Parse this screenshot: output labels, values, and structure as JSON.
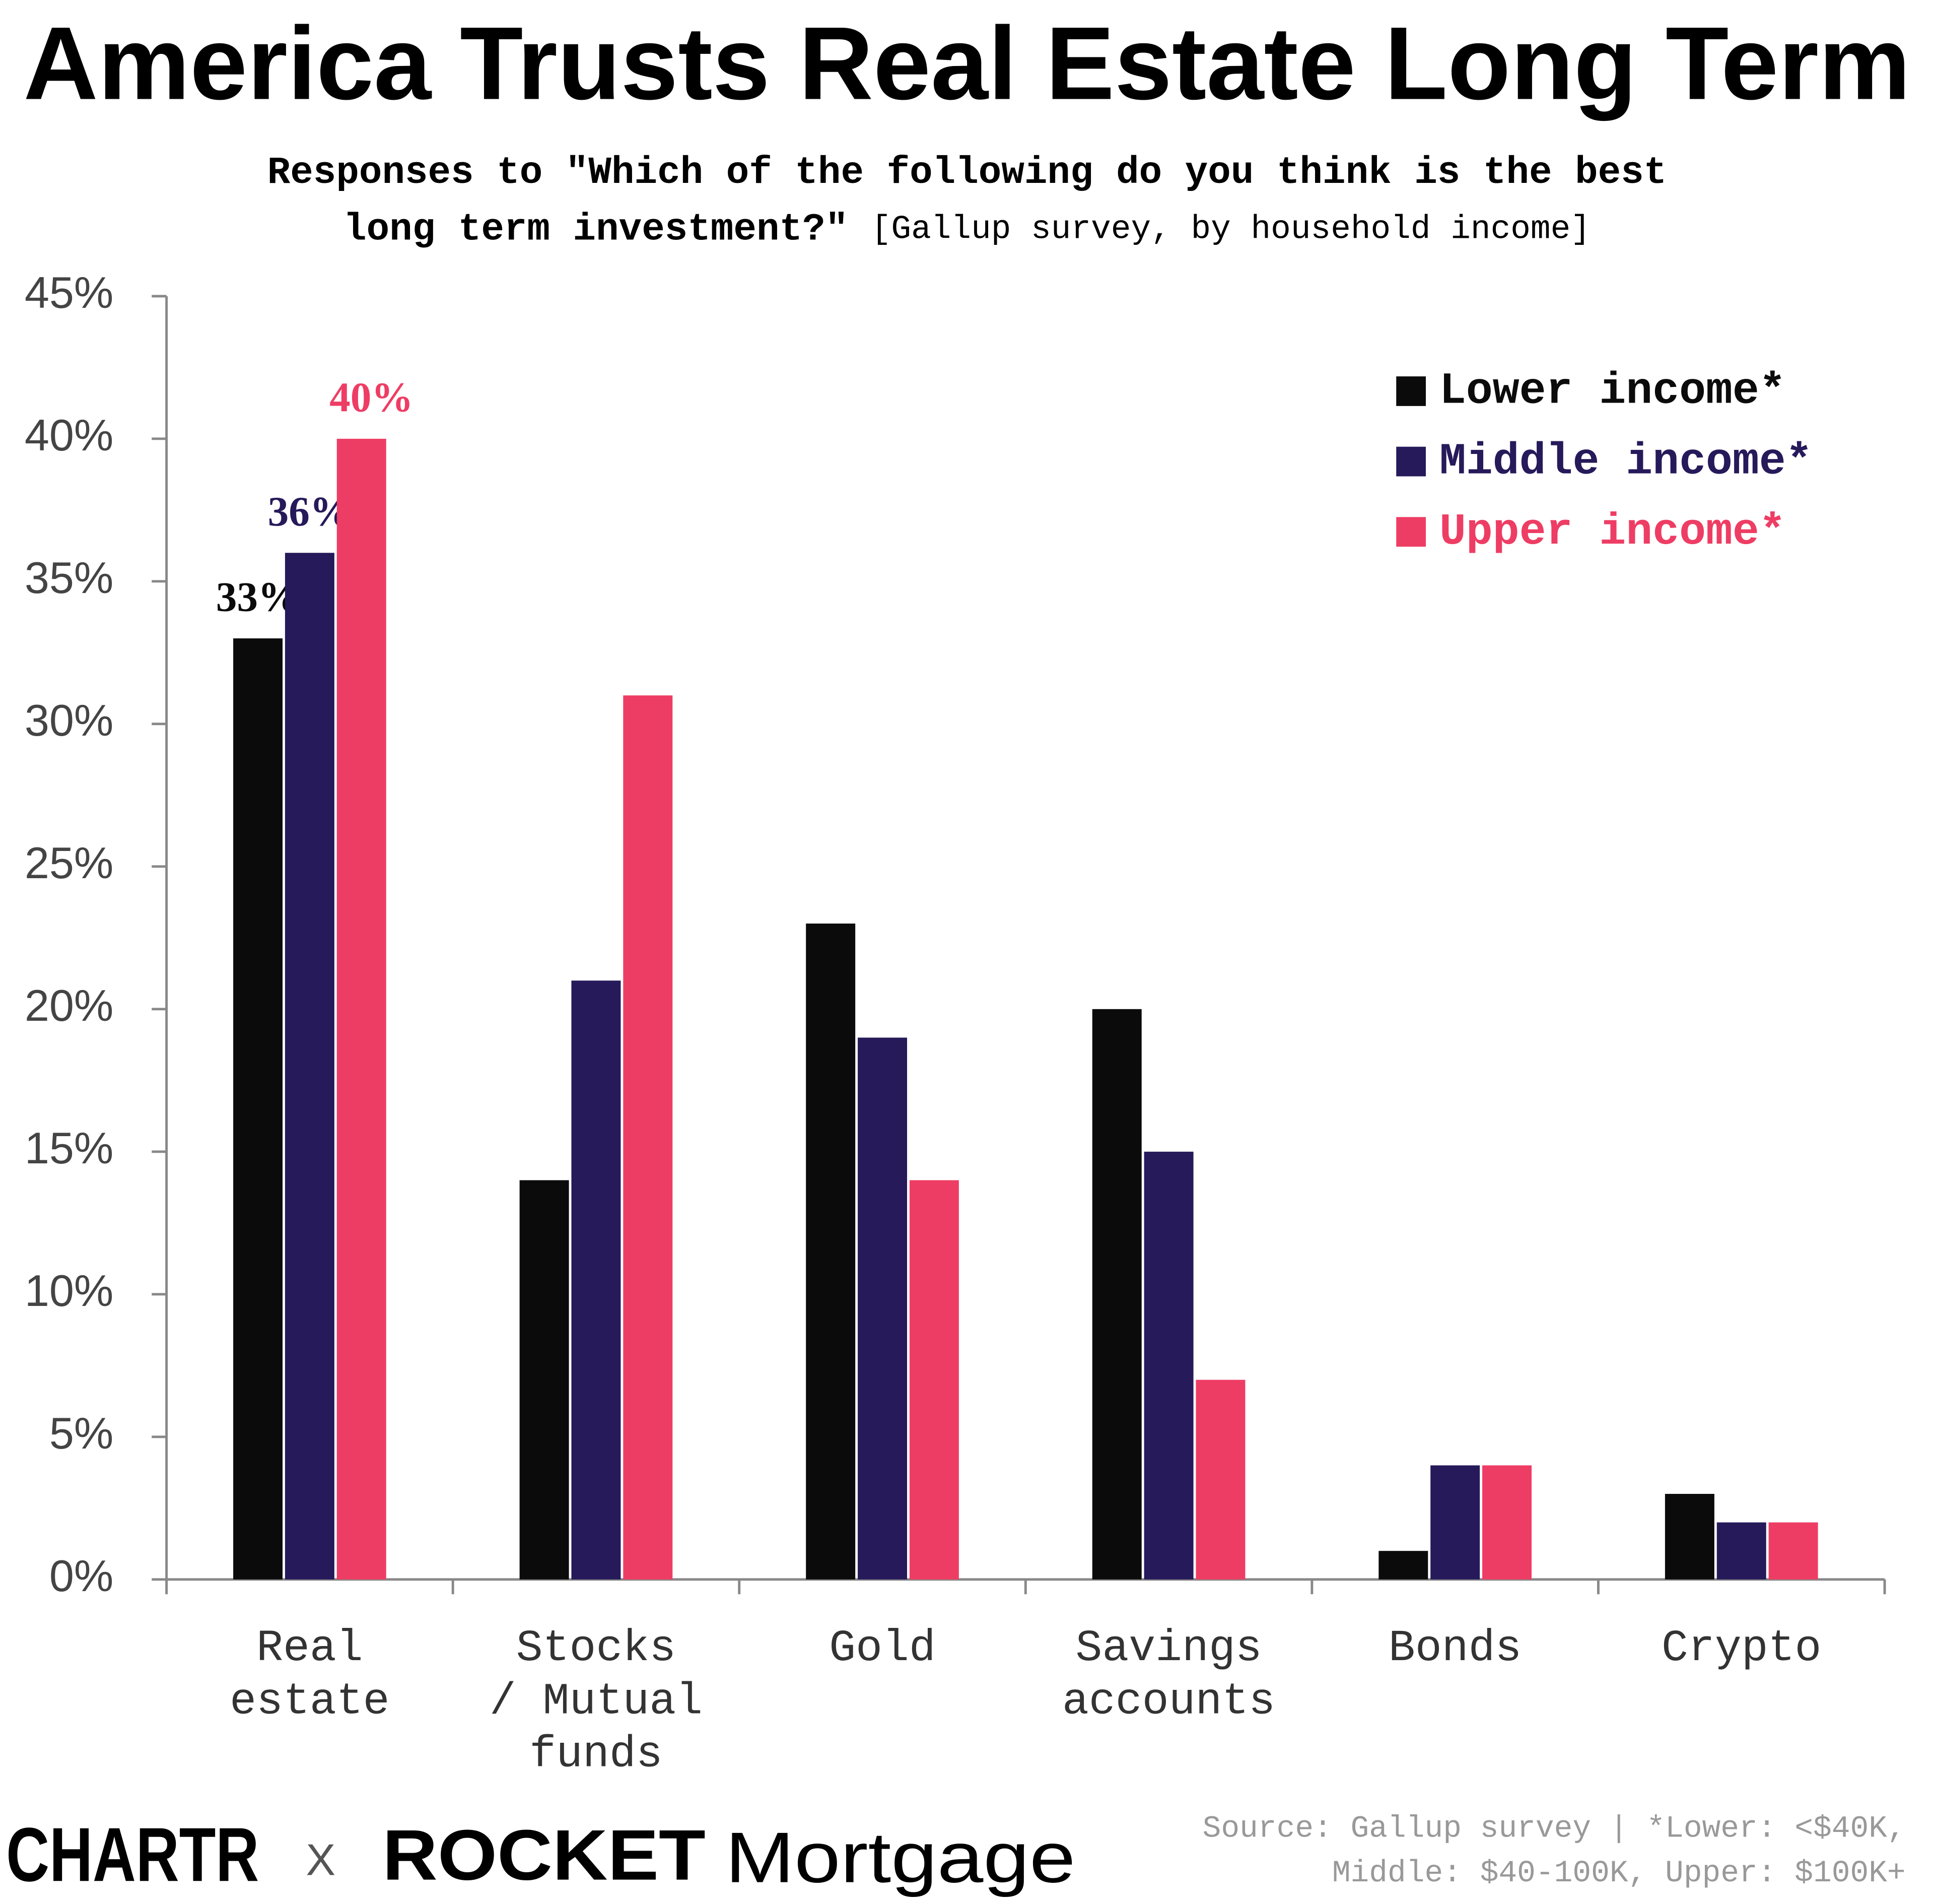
{
  "chart_data": {
    "type": "bar",
    "title": "America Trusts Real Estate Long Term",
    "subtitle": "Responses to \"Which of the following do you think is the best long term investment?\"",
    "subtitle_note": "[Gallup survey, by household income]",
    "categories": [
      "Real\nestate",
      "Stocks\n/ Mutual\nfunds",
      "Gold",
      "Savings\naccounts",
      "Bonds",
      "Crypto"
    ],
    "series": [
      {
        "name": "Lower income*",
        "color": "#0a0b0a",
        "values": [
          33,
          14,
          23,
          20,
          1,
          3
        ],
        "value_labels": [
          "33%",
          null,
          null,
          null,
          null,
          null
        ]
      },
      {
        "name": "Middle income*",
        "color": "#261a5a",
        "values": [
          36,
          21,
          19,
          15,
          4,
          2
        ],
        "value_labels": [
          "36%",
          null,
          null,
          null,
          null,
          null
        ]
      },
      {
        "name": "Upper income*",
        "color": "#ee3d64",
        "values": [
          40,
          31,
          14,
          7,
          4,
          2
        ],
        "value_labels": [
          "40%",
          null,
          null,
          null,
          null,
          null
        ]
      }
    ],
    "ylim": [
      0,
      45
    ],
    "yticks": [
      {
        "value": 0,
        "label": "0%"
      },
      {
        "value": 5,
        "label": "5%"
      },
      {
        "value": 10,
        "label": "10%"
      },
      {
        "value": 15,
        "label": "15%"
      },
      {
        "value": 20,
        "label": "20%"
      },
      {
        "value": 25,
        "label": "25%"
      },
      {
        "value": 30,
        "label": "30%"
      },
      {
        "value": 35,
        "label": "35%"
      },
      {
        "value": 40,
        "label": "40%"
      },
      {
        "value": 45,
        "label": "45%"
      }
    ],
    "legend": "top-right",
    "source": [
      "Source: Gallup survey | *Lower: <$40K,",
      "Middle: $40-100K, Upper: $100K+"
    ],
    "brand": {
      "left": "CHARTR",
      "separator": "X",
      "right_bold": "ROCKET",
      "right": "Mortgage"
    }
  }
}
